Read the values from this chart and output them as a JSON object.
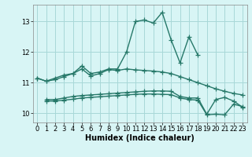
{
  "xlabel": "Humidex (Indice chaleur)",
  "x": [
    0,
    1,
    2,
    3,
    4,
    5,
    6,
    7,
    8,
    9,
    10,
    11,
    12,
    13,
    14,
    15,
    16,
    17,
    18,
    19,
    20,
    21,
    22,
    23
  ],
  "line1": [
    11.15,
    11.05,
    11.1,
    11.2,
    11.3,
    11.55,
    11.3,
    11.35,
    11.45,
    11.45,
    12.0,
    13.0,
    13.05,
    12.95,
    13.3,
    12.4,
    11.65,
    12.5,
    11.9,
    null,
    null,
    null,
    null,
    null
  ],
  "line2": [
    11.15,
    11.05,
    11.15,
    11.25,
    11.3,
    11.45,
    11.22,
    11.3,
    11.43,
    11.4,
    11.45,
    11.42,
    11.4,
    11.38,
    11.35,
    11.3,
    11.2,
    11.1,
    11.0,
    10.9,
    10.8,
    10.72,
    10.65,
    10.6
  ],
  "line3": [
    null,
    10.45,
    10.45,
    10.5,
    10.55,
    10.58,
    10.6,
    10.62,
    10.64,
    10.66,
    10.68,
    10.7,
    10.72,
    10.73,
    10.73,
    10.72,
    10.55,
    10.5,
    10.5,
    9.97,
    10.45,
    10.52,
    10.4,
    10.2
  ],
  "line4": [
    null,
    10.4,
    10.4,
    10.43,
    10.46,
    10.5,
    10.52,
    10.54,
    10.56,
    10.58,
    10.6,
    10.62,
    10.63,
    10.63,
    10.62,
    10.61,
    10.5,
    10.45,
    10.43,
    9.95,
    9.97,
    9.95,
    10.3,
    10.22
  ],
  "line_color": "#267869",
  "bg_color": "#d8f5f5",
  "grid_color": "#a8d8d8",
  "ylim": [
    9.7,
    13.55
  ],
  "xlim": [
    -0.5,
    23.5
  ],
  "yticks": [
    10,
    11,
    12,
    13
  ],
  "xticks": [
    0,
    1,
    2,
    3,
    4,
    5,
    6,
    7,
    8,
    9,
    10,
    11,
    12,
    13,
    14,
    15,
    16,
    17,
    18,
    19,
    20,
    21,
    22,
    23
  ],
  "marker": "+",
  "markersize": 4,
  "linewidth": 1.0
}
